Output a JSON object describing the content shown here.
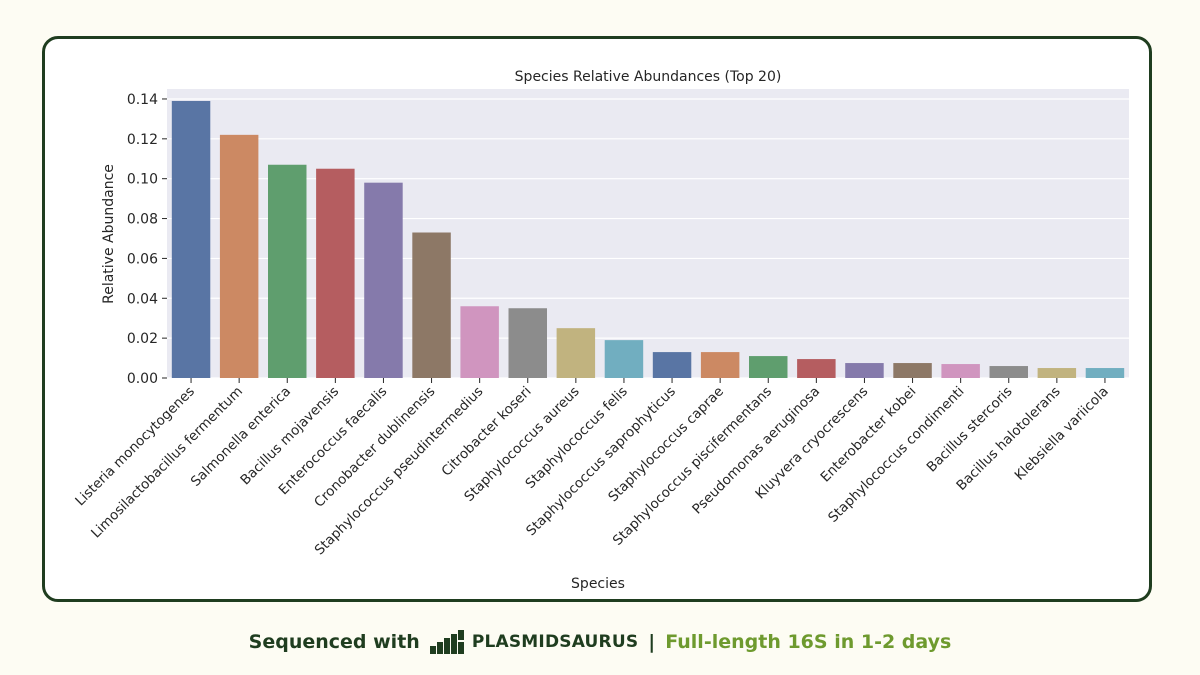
{
  "chart_data": {
    "type": "bar",
    "title": "Species Relative Abundances (Top 20)",
    "xlabel": "Species",
    "ylabel": "Relative Abundance",
    "ylim": [
      0,
      0.145
    ],
    "yticks": [
      "0.00",
      "0.02",
      "0.04",
      "0.06",
      "0.08",
      "0.10",
      "0.12",
      "0.14"
    ],
    "grid": true,
    "categories": [
      "Listeria monocytogenes",
      "Limosilactobacillus fermentum",
      "Salmonella enterica",
      "Bacillus mojavensis",
      "Enterococcus faecalis",
      "Cronobacter dublinensis",
      "Staphylococcus pseudintermedius",
      "Citrobacter koseri",
      "Staphylococcus aureus",
      "Staphylococcus felis",
      "Staphylococcus saprophyticus",
      "Staphylococcus caprae",
      "Staphylococcus piscifermentans",
      "Pseudomonas aeruginosa",
      "Kluyvera cryocrescens",
      "Enterobacter kobei",
      "Staphylococcus condimenti",
      "Bacillus stercoris",
      "Bacillus halotolerans",
      "Klebsiella variicola"
    ],
    "values": [
      0.139,
      0.122,
      0.107,
      0.105,
      0.098,
      0.073,
      0.036,
      0.035,
      0.025,
      0.019,
      0.013,
      0.013,
      0.011,
      0.0095,
      0.0075,
      0.0075,
      0.007,
      0.006,
      0.005,
      0.005
    ],
    "colors": [
      "#5975a4",
      "#cc8963",
      "#5f9e6e",
      "#b55d60",
      "#857aab",
      "#8d7866",
      "#d095bf",
      "#8c8c8c",
      "#c1b37f",
      "#71aec0",
      "#5975a4",
      "#cc8963",
      "#5f9e6e",
      "#b55d60",
      "#857aab",
      "#8d7866",
      "#d095bf",
      "#8c8c8c",
      "#c1b37f",
      "#71aec0"
    ],
    "plot_background": "#eaeaf2"
  },
  "footer": {
    "sequenced_with": "Sequenced with",
    "brand": "PLASMIDSAURUS",
    "separator": "|",
    "tagline": "Full-length 16S in 1-2 days"
  },
  "colors": {
    "border": "#1f3d1f",
    "tagline": "#6e9a2e"
  }
}
